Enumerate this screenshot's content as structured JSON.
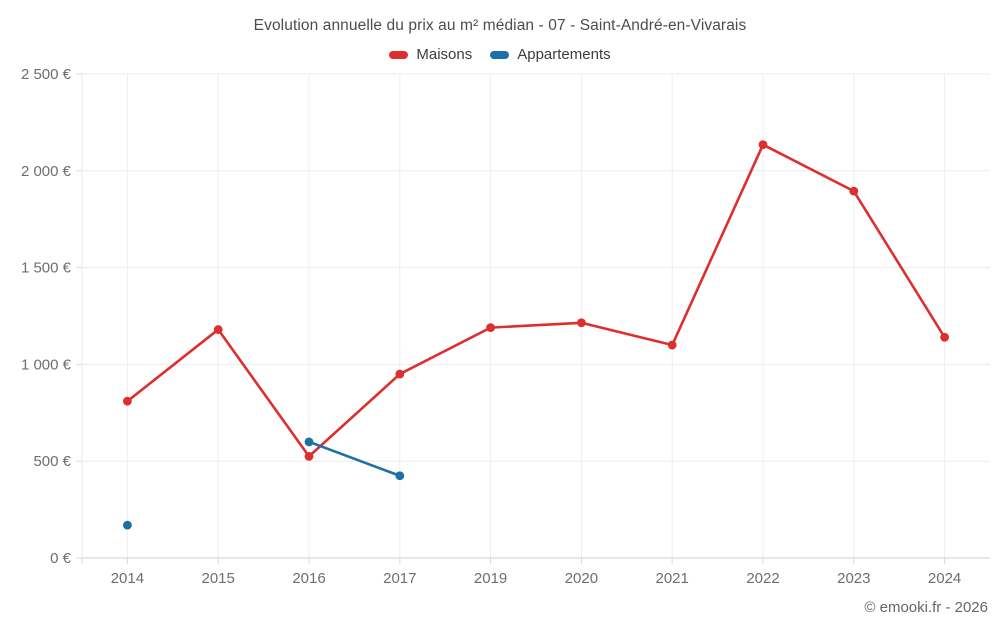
{
  "footer": {
    "credit": "© emooki.fr - 2026"
  },
  "chart_data": {
    "type": "line",
    "title": "Evolution annuelle du prix au m² médian - 07 - Saint-André-en-Vivarais",
    "categories": [
      "2014",
      "2015",
      "2016",
      "2017",
      "2019",
      "2020",
      "2021",
      "2022",
      "2023",
      "2024"
    ],
    "series": [
      {
        "name": "Maisons",
        "color": "#dc2f2f",
        "values": [
          810,
          1180,
          525,
          950,
          1190,
          1215,
          1100,
          2135,
          1895,
          1140
        ]
      },
      {
        "name": "Appartements",
        "color": "#1d70a6",
        "values": [
          170,
          null,
          600,
          425,
          null,
          null,
          null,
          null,
          null,
          null
        ]
      }
    ],
    "xlabel": "",
    "ylabel": "",
    "ylim": [
      0,
      2500
    ],
    "yticks": [
      0,
      500,
      1000,
      1500,
      2000,
      2500
    ],
    "ytick_labels": [
      "0 €",
      "500 €",
      "1 000 €",
      "1 500 €",
      "2 000 €",
      "2 500 €"
    ],
    "grid": true,
    "legend_position": "top",
    "units": "€/m²"
  }
}
